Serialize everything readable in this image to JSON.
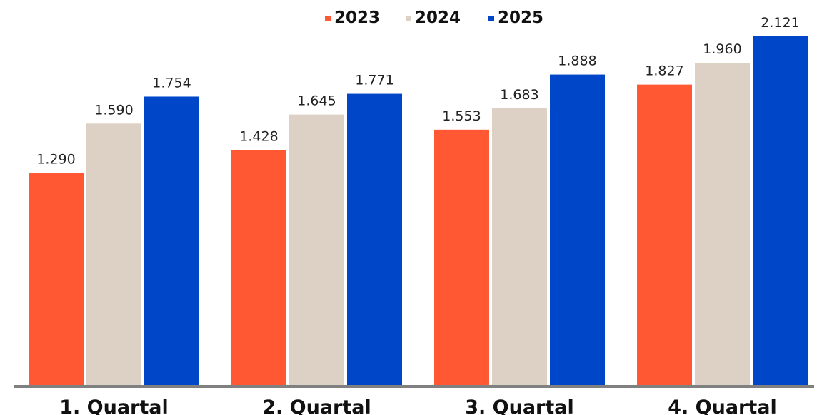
{
  "chart_data": {
    "type": "bar",
    "categories": [
      "1. Quartal",
      "2. Quartal",
      "3. Quartal",
      "4. Quartal"
    ],
    "series": [
      {
        "name": "2023",
        "values": [
          1290,
          1428,
          1553,
          1827
        ],
        "labels": [
          "1.290",
          "1.428",
          "1.553",
          "1.827"
        ],
        "color": "#ff5833"
      },
      {
        "name": "2024",
        "values": [
          1590,
          1645,
          1683,
          1960
        ],
        "labels": [
          "1.590",
          "1.645",
          "1.683",
          "1.960"
        ],
        "color": "#ddd1c5"
      },
      {
        "name": "2025",
        "values": [
          1754,
          1771,
          1888,
          2121
        ],
        "labels": [
          "1.754",
          "1.771",
          "1.888",
          "2.121"
        ],
        "color": "#0046c8"
      }
    ],
    "title": "",
    "xlabel": "",
    "ylabel": "",
    "ylim": [
      0,
      2220
    ],
    "grid": false,
    "legend_position": "top-center",
    "axis_color": "#808080"
  }
}
